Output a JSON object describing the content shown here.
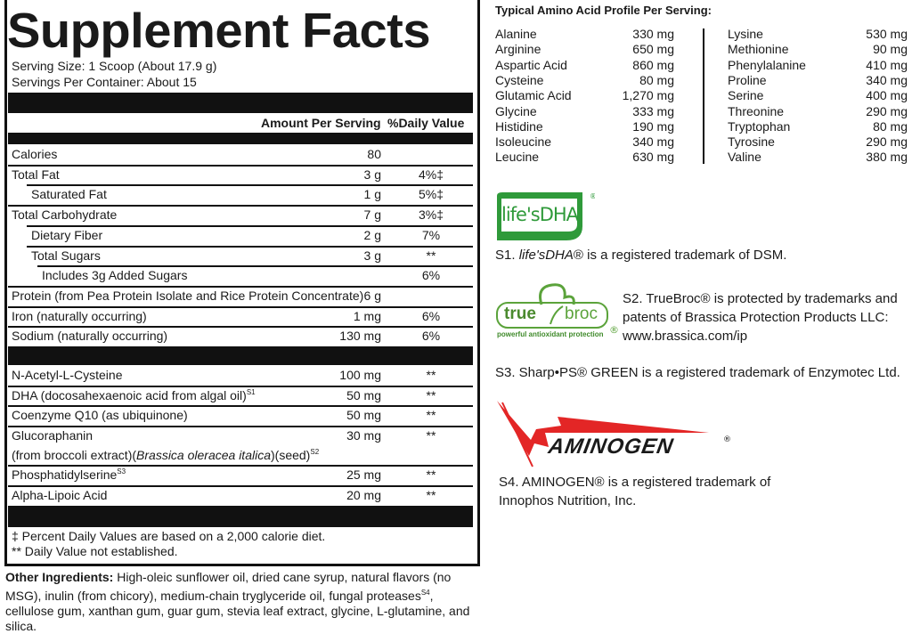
{
  "panel": {
    "title": "Supplement Facts",
    "serving_size": "Serving Size: 1 Scoop (About 17.9 g)",
    "servings_per_container": "Servings Per Container: About 15",
    "header_amount": "Amount Per Serving",
    "header_dv": "%Daily Value",
    "nutrients": [
      {
        "label": "Calories",
        "amount": "80",
        "dv": ""
      },
      {
        "label": "Total Fat",
        "amount": "3 g",
        "dv": "4%‡"
      },
      {
        "label": "Saturated Fat",
        "amount": "1 g",
        "dv": "5%‡"
      },
      {
        "label": "Total Carbohydrate",
        "amount": "7 g",
        "dv": "3%‡"
      },
      {
        "label": "Dietary Fiber",
        "amount": "2 g",
        "dv": "7%"
      },
      {
        "label": "Total Sugars",
        "amount": "3 g",
        "dv": "**"
      },
      {
        "label": "Includes 3g Added Sugars",
        "amount": "",
        "dv": "6%"
      },
      {
        "label": "Protein (from Pea Protein Isolate and Rice Protein Concentrate)",
        "amount": "6 g",
        "dv": ""
      },
      {
        "label": "Iron (naturally occurring)",
        "amount": "1 mg",
        "dv": "6%"
      },
      {
        "label": "Sodium (naturally occurring)",
        "amount": "130 mg",
        "dv": "6%"
      }
    ],
    "other_nutrients": [
      {
        "label": "N-Acetyl-L-Cysteine",
        "sup": "",
        "amount": "100 mg",
        "dv": "**"
      },
      {
        "label": "DHA (docosahexaenoic acid from algal oil)",
        "sup": "S1",
        "amount": "50 mg",
        "dv": "**"
      },
      {
        "label": "Coenzyme Q10 (as ubiquinone)",
        "sup": "",
        "amount": "50 mg",
        "dv": "**"
      },
      {
        "label": "Glucoraphanin",
        "sup": "",
        "amount": "30 mg",
        "dv": "**",
        "line2_a": "(from broccoli extract)(",
        "line2_italic": "Brassica oleracea italica",
        "line2_b": ")(seed)",
        "line2_sup": "S2"
      },
      {
        "label": "Phosphatidylserine",
        "sup": "S3",
        "amount": "25 mg",
        "dv": "**"
      },
      {
        "label": "Alpha-Lipoic Acid",
        "sup": "",
        "amount": "20 mg",
        "dv": "**"
      }
    ],
    "footnote_1": "‡ Percent Daily Values are based on a 2,000 calorie diet.",
    "footnote_2": "** Daily Value not established."
  },
  "other_ingredients": {
    "label": "Other Ingredients:",
    "text_a": " High-oleic sunflower oil, dried cane syrup, natural flavors (no MSG), inulin (from chicory), medium-chain tryglyceride oil, fungal proteases",
    "sup": "S4",
    "text_b": ", cellulose gum, xanthan gum, guar gum, stevia leaf extract, glycine, L-glutamine, and silica."
  },
  "amino": {
    "title": "Typical Amino Acid Profile Per Serving:",
    "left": [
      {
        "name": "Alanine",
        "value": "330 mg"
      },
      {
        "name": "Arginine",
        "value": "650 mg"
      },
      {
        "name": "Aspartic Acid",
        "value": "860 mg"
      },
      {
        "name": "Cysteine",
        "value": "80 mg"
      },
      {
        "name": "Glutamic Acid",
        "value": "1,270 mg"
      },
      {
        "name": "Glycine",
        "value": "333 mg"
      },
      {
        "name": "Histidine",
        "value": "190 mg"
      },
      {
        "name": "Isoleucine",
        "value": "340 mg"
      },
      {
        "name": "Leucine",
        "value": "630 mg"
      }
    ],
    "right": [
      {
        "name": "Lysine",
        "value": "530 mg"
      },
      {
        "name": "Methionine",
        "value": "90 mg"
      },
      {
        "name": "Phenylalanine",
        "value": "410 mg"
      },
      {
        "name": "Proline",
        "value": "340 mg"
      },
      {
        "name": "Serine",
        "value": "400 mg"
      },
      {
        "name": "Threonine",
        "value": "290 mg"
      },
      {
        "name": "Tryptophan",
        "value": "80 mg"
      },
      {
        "name": "Tyrosine",
        "value": "290 mg"
      },
      {
        "name": "Valine",
        "value": "380 mg"
      }
    ]
  },
  "trademarks": {
    "lifesdha_logo": "life'sDHA",
    "s1_prefix": "S1. ",
    "s1_brand": "life'sDHA",
    "s1_text": "® is a registered trademark of DSM.",
    "truebroc_logo_a": "true",
    "truebroc_logo_b": "broc",
    "truebroc_tagline": "powerful antioxidant protection",
    "s2_line1": "S2. TrueBroc® is protected by trademarks and",
    "s2_line2": "patents of Brassica Protection Products LLC:",
    "s2_line3": "www.brassica.com/ip",
    "s3_text": "S3. Sharp•PS® GREEN is a registered trademark of Enzymotec Ltd.",
    "aminogen_logo": "AMINOGEN",
    "s4_line1": "S4. AMINOGEN® is a registered trademark of",
    "s4_line2": "Innophos Nutrition, Inc."
  },
  "colors": {
    "lifesdha_green": "#2f9a3a",
    "truebroc_green": "#5ba33b",
    "aminogen_red": "#e32626"
  }
}
